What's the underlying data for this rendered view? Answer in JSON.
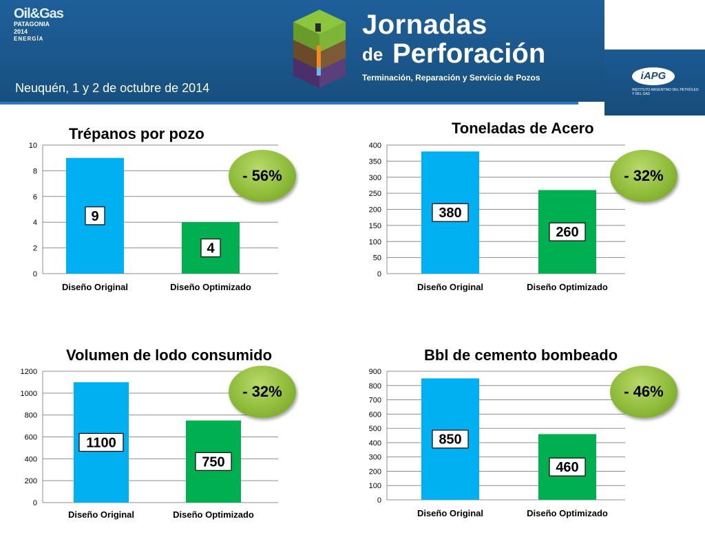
{
  "header": {
    "oilgas_logo": {
      "line1": "Oil&Gas",
      "line2": "PATAGONIA 2014",
      "line3": "ENERGÍA"
    },
    "title_line1": "Jornadas",
    "title_de": "de",
    "title_line2": "Perforación",
    "subtitle": "Terminación, Reparación y Servicio de Pozos",
    "location": "Neuquén,  1 y 2 de octubre de 2014",
    "iapg_logo": "iAPG",
    "iapg_text": "INSTITUTO ARGENTINO DEL PETRÓLEO Y DEL GAS"
  },
  "colors": {
    "original": "#00b0f0",
    "optimized": "#00b050",
    "badge": "#8fbc3a",
    "banner": "#1a5688"
  },
  "chart_data": [
    {
      "type": "bar",
      "title": "Trépanos por pozo",
      "categories": [
        "Diseño Original",
        "Diseño Optimizado"
      ],
      "values": [
        9,
        4
      ],
      "value_labels": [
        "9",
        "4"
      ],
      "ylim": [
        0,
        10
      ],
      "yticks": [
        0,
        2,
        4,
        6,
        8,
        10
      ],
      "badge": "- 56%",
      "grid": true
    },
    {
      "type": "bar",
      "title": "Toneladas de Acero",
      "categories": [
        "Diseño Original",
        "Diseño Optimizado"
      ],
      "values": [
        380,
        260
      ],
      "value_labels": [
        "380",
        "260"
      ],
      "ylim": [
        0,
        400
      ],
      "yticks": [
        0,
        50,
        100,
        150,
        200,
        250,
        300,
        350,
        400
      ],
      "badge": "- 32%",
      "grid": true
    },
    {
      "type": "bar",
      "title": "Volumen de lodo consumido",
      "categories": [
        "Diseño Original",
        "Diseño Optimizado"
      ],
      "values": [
        1100,
        750
      ],
      "value_labels": [
        "1100",
        "750"
      ],
      "ylim": [
        0,
        1200
      ],
      "yticks": [
        0,
        200,
        400,
        600,
        800,
        1000,
        1200
      ],
      "badge": "- 32%",
      "grid": true
    },
    {
      "type": "bar",
      "title": "Bbl de cemento bombeado",
      "categories": [
        "Diseño Original",
        "Diseño Optimizado"
      ],
      "values": [
        850,
        460
      ],
      "value_labels": [
        "850",
        "460"
      ],
      "ylim": [
        0,
        900
      ],
      "yticks": [
        0,
        100,
        200,
        300,
        400,
        500,
        600,
        700,
        800,
        900
      ],
      "badge": "- 46%",
      "grid": true
    }
  ]
}
